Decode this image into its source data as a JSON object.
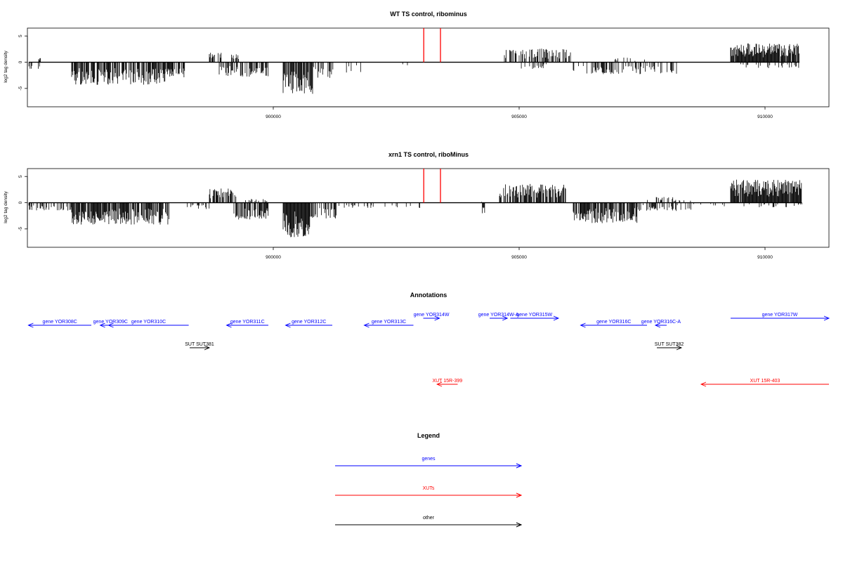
{
  "colors": {
    "genes": "#0000ff",
    "xuts": "#ff0000",
    "other": "#000000",
    "marker": "#ff0000",
    "axis": "#000000",
    "bars": "#000000"
  },
  "chart_data": [
    {
      "type": "bar",
      "title": "WT TS control, ribominus",
      "ylabel": "log2 tag density",
      "xlim": [
        895000,
        911300
      ],
      "ylim": [
        -8.5,
        6.5
      ],
      "xticks": [
        900000,
        905000,
        910000
      ],
      "yticks": [
        -5,
        0,
        5
      ],
      "marker_lines_x": [
        903060,
        903400
      ],
      "marker_height": 6.5,
      "segments": [
        {
          "from": 895030,
          "to": 895250,
          "sign": -1,
          "amp": 1.5,
          "density": 0.25,
          "seed": 11
        },
        {
          "from": 895230,
          "to": 895270,
          "sign": 1,
          "amp": 1.0,
          "density": 1.0,
          "seed": 12
        },
        {
          "from": 895900,
          "to": 897800,
          "sign": -1,
          "amp": 4.3,
          "density": 0.75,
          "seed": 13
        },
        {
          "from": 897800,
          "to": 898200,
          "sign": -1,
          "amp": 3.0,
          "density": 0.6,
          "seed": 14
        },
        {
          "from": 898700,
          "to": 899000,
          "sign": 1,
          "amp": 2.0,
          "density": 0.45,
          "seed": 15
        },
        {
          "from": 898900,
          "to": 899900,
          "sign": -1,
          "amp": 2.8,
          "density": 0.55,
          "seed": 16
        },
        {
          "from": 899150,
          "to": 899300,
          "sign": 1,
          "amp": 1.6,
          "density": 0.5,
          "seed": 17
        },
        {
          "from": 900200,
          "to": 900800,
          "sign": -1,
          "amp": 6.2,
          "density": 0.9,
          "seed": 18
        },
        {
          "from": 900800,
          "to": 901200,
          "sign": -1,
          "amp": 3.0,
          "density": 0.4,
          "seed": 19
        },
        {
          "from": 901200,
          "to": 901800,
          "sign": -1,
          "amp": 2.0,
          "density": 0.15,
          "seed": 20
        },
        {
          "from": 902500,
          "to": 902800,
          "sign": -1,
          "amp": 1.0,
          "density": 0.15,
          "seed": 21
        },
        {
          "from": 904700,
          "to": 906050,
          "sign": 1,
          "amp": 2.6,
          "density": 0.5,
          "seed": 22
        },
        {
          "from": 904900,
          "to": 905600,
          "sign": -1,
          "amp": 1.4,
          "density": 0.2,
          "seed": 23
        },
        {
          "from": 906100,
          "to": 908200,
          "sign": -1,
          "amp": 2.3,
          "density": 0.35,
          "seed": 24
        },
        {
          "from": 906900,
          "to": 907600,
          "sign": 1,
          "amp": 0.9,
          "density": 0.15,
          "seed": 25
        },
        {
          "from": 909300,
          "to": 910700,
          "sign": 1,
          "amp": 3.6,
          "density": 0.9,
          "seed": 26
        },
        {
          "from": 909400,
          "to": 910700,
          "sign": -1,
          "amp": 1.2,
          "density": 0.2,
          "seed": 27
        }
      ]
    },
    {
      "type": "bar",
      "title": "xrn1 TS control, riboMinus",
      "ylabel": "log2 tag density",
      "xlim": [
        895000,
        911300
      ],
      "ylim": [
        -8.5,
        6.5
      ],
      "xticks": [
        900000,
        905000,
        910000
      ],
      "yticks": [
        -5,
        0,
        5
      ],
      "marker_lines_x": [
        903060,
        903400
      ],
      "marker_height": 6.5,
      "segments": [
        {
          "from": 895030,
          "to": 895900,
          "sign": -1,
          "amp": 1.5,
          "density": 0.4,
          "seed": 31
        },
        {
          "from": 895900,
          "to": 897900,
          "sign": -1,
          "amp": 4.2,
          "density": 0.8,
          "seed": 32
        },
        {
          "from": 898000,
          "to": 898700,
          "sign": -1,
          "amp": 1.2,
          "density": 0.2,
          "seed": 33
        },
        {
          "from": 898700,
          "to": 899250,
          "sign": 1,
          "amp": 2.7,
          "density": 0.6,
          "seed": 34
        },
        {
          "from": 899200,
          "to": 899900,
          "sign": -1,
          "amp": 3.2,
          "density": 0.75,
          "seed": 35
        },
        {
          "from": 899400,
          "to": 899900,
          "sign": 1,
          "amp": 0.8,
          "density": 0.25,
          "seed": 36
        },
        {
          "from": 900200,
          "to": 900750,
          "sign": -1,
          "amp": 6.6,
          "density": 0.9,
          "seed": 37
        },
        {
          "from": 900750,
          "to": 901300,
          "sign": -1,
          "amp": 3.2,
          "density": 0.55,
          "seed": 38
        },
        {
          "from": 901300,
          "to": 903000,
          "sign": -1,
          "amp": 1.0,
          "density": 0.15,
          "seed": 39
        },
        {
          "from": 904200,
          "to": 904300,
          "sign": 1,
          "amp": 0.5,
          "density": 0.2,
          "seed": 40
        },
        {
          "from": 904250,
          "to": 904300,
          "sign": -1,
          "amp": 2.0,
          "density": 1.0,
          "seed": 41
        },
        {
          "from": 904600,
          "to": 905950,
          "sign": 1,
          "amp": 3.6,
          "density": 0.75,
          "seed": 42
        },
        {
          "from": 906100,
          "to": 907400,
          "sign": -1,
          "amp": 3.9,
          "density": 0.8,
          "seed": 43
        },
        {
          "from": 907400,
          "to": 908500,
          "sign": -1,
          "amp": 1.6,
          "density": 0.35,
          "seed": 44
        },
        {
          "from": 907500,
          "to": 908500,
          "sign": 1,
          "amp": 1.1,
          "density": 0.2,
          "seed": 45
        },
        {
          "from": 908500,
          "to": 909300,
          "sign": -1,
          "amp": 0.9,
          "density": 0.15,
          "seed": 46
        },
        {
          "from": 909300,
          "to": 910750,
          "sign": 1,
          "amp": 4.4,
          "density": 0.95,
          "seed": 47
        },
        {
          "from": 909500,
          "to": 910750,
          "sign": -1,
          "amp": 0.9,
          "density": 0.2,
          "seed": 48
        }
      ]
    }
  ],
  "annotations": {
    "title": "Annotations",
    "xlim": [
      895000,
      911300
    ],
    "features": [
      {
        "label": "gene YOR308C",
        "type": "genes",
        "start": 895020,
        "end": 896300,
        "strand": "-",
        "row": 1
      },
      {
        "label": "gene YOR309C",
        "type": "genes",
        "start": 896480,
        "end": 896900,
        "strand": "-",
        "row": 1
      },
      {
        "label": "gene YOR310C",
        "type": "genes",
        "start": 896650,
        "end": 898280,
        "strand": "-",
        "row": 1
      },
      {
        "label": "SUT SUT381",
        "type": "other",
        "start": 898300,
        "end": 898700,
        "strand": "+",
        "row": 2
      },
      {
        "label": "gene YOR311C",
        "type": "genes",
        "start": 899050,
        "end": 899900,
        "strand": "-",
        "row": 1
      },
      {
        "label": "gene YOR312C",
        "type": "genes",
        "start": 900250,
        "end": 901200,
        "strand": "-",
        "row": 1
      },
      {
        "label": "gene YOR313C",
        "type": "genes",
        "start": 901850,
        "end": 902850,
        "strand": "-",
        "row": 1
      },
      {
        "label": "gene YOR314W",
        "type": "genes",
        "start": 903050,
        "end": 903380,
        "strand": "+",
        "row": 0
      },
      {
        "label": "XUT 15R-399",
        "type": "xuts",
        "start": 903330,
        "end": 903750,
        "strand": "-",
        "row": 3
      },
      {
        "label": "gene YOR314W-A",
        "type": "genes",
        "start": 904400,
        "end": 904760,
        "strand": "+",
        "row": 0
      },
      {
        "label": "gene YOR315W",
        "type": "genes",
        "start": 904820,
        "end": 905800,
        "strand": "+",
        "row": 0
      },
      {
        "label": "gene YOR316C",
        "type": "genes",
        "start": 906250,
        "end": 907600,
        "strand": "-",
        "row": 1
      },
      {
        "label": "gene YOR316C-A",
        "type": "genes",
        "start": 907770,
        "end": 908000,
        "strand": "-",
        "row": 1
      },
      {
        "label": "SUT SUT382",
        "type": "other",
        "start": 907800,
        "end": 908300,
        "strand": "+",
        "row": 2
      },
      {
        "label": "XUT 15R-403",
        "type": "xuts",
        "start": 908700,
        "end": 911300,
        "strand": "-",
        "row": 3
      },
      {
        "label": "gene YOR317W",
        "type": "genes",
        "start": 909300,
        "end": 911300,
        "strand": "+",
        "row": 0
      }
    ]
  },
  "legend": {
    "title": "Legend",
    "items": [
      {
        "label": "genes",
        "type": "genes"
      },
      {
        "label": "XUTs",
        "type": "xuts"
      },
      {
        "label": "other",
        "type": "other"
      }
    ]
  }
}
